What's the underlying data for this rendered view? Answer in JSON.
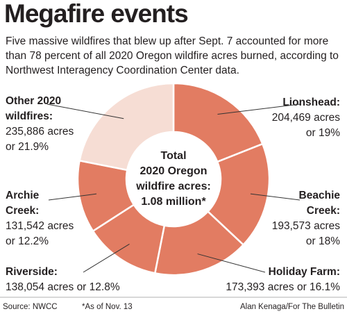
{
  "chart_data": {
    "type": "pie",
    "title": "Megafire events",
    "subtitle": [
      "Five massive wildfires that blew up after Sept. 7 accounted for more",
      "than 78 percent of all 2020 Oregon wildfire acres burned, according to",
      "Northwest Interagency Coordination Center data."
    ],
    "categories": [
      [
        "Lionshead:"
      ],
      [
        "Beachie",
        "Creek:"
      ],
      [
        "Holiday Farm:"
      ],
      [
        "Riverside:"
      ],
      [
        "Archie",
        "Creek:"
      ],
      [
        "Other 2020",
        "wildfires:"
      ]
    ],
    "acres_labels": [
      "204,469 acres",
      "193,573 acres",
      "173,393 acres",
      "138,054 acres",
      "131,542 acres",
      "235,886 acres"
    ],
    "values": [
      19,
      18,
      16.1,
      12.8,
      12.2,
      21.9
    ],
    "value_labels": [
      "or 19%",
      "or 18%",
      "or 16.1%",
      "or 12.8%",
      "or 12.2%",
      "or 21.9%"
    ],
    "colors": [
      "#e27c62",
      "#e27c62",
      "#e27c62",
      "#e27c62",
      "#e27c62",
      "#f6ddd4"
    ],
    "center_label": [
      "Total",
      "2020 Oregon",
      "wildfire acres:",
      "1.08 million*"
    ],
    "source": "Source: NWCC",
    "note": "*As of Nov. 13",
    "credit": "Alan Kenaga/For The Bulletin"
  }
}
